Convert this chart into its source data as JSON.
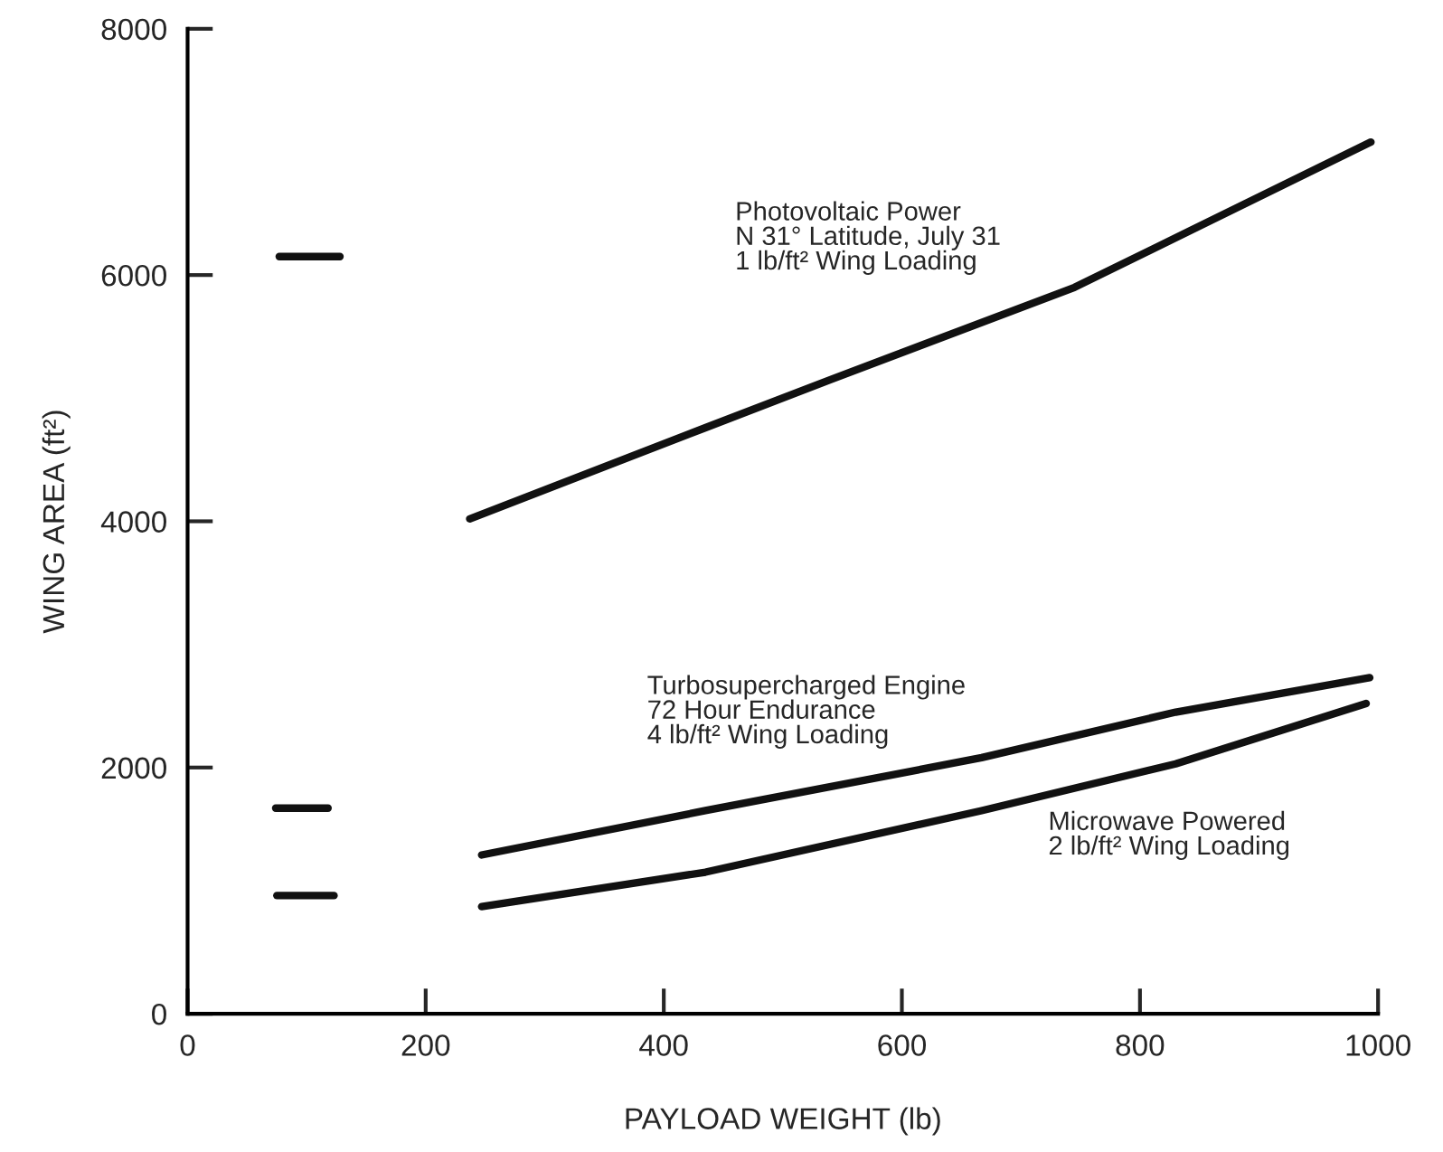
{
  "chart_data": {
    "type": "line",
    "xlabel": "PAYLOAD WEIGHT (lb)",
    "ylabel": "WING AREA (ft²)",
    "xlim": [
      0,
      1000
    ],
    "ylim": [
      0,
      8000
    ],
    "xticks": [
      0,
      200,
      400,
      600,
      800,
      1000
    ],
    "yticks": [
      0,
      2000,
      4000,
      6000,
      8000
    ],
    "grid": false,
    "marker": "none",
    "line_style": "solid",
    "series": [
      {
        "color": "#111111",
        "x": [
          237,
          435,
          540,
          745,
          994
        ],
        "values": [
          4020,
          4760,
          5150,
          5900,
          7080
        ]
      },
      {
        "color": "#111111",
        "x": [
          247,
          435,
          667,
          830,
          993
        ],
        "values": [
          1290,
          1650,
          2080,
          2450,
          2730
        ]
      },
      {
        "color": "#111111",
        "x": [
          247,
          435,
          667,
          830,
          990
        ],
        "values": [
          870,
          1150,
          1650,
          2030,
          2520
        ]
      },
      {
        "color": "#111111",
        "x": [
          77,
          128
        ],
        "values": [
          6150,
          6150
        ]
      },
      {
        "color": "#111111",
        "x": [
          74,
          118
        ],
        "values": [
          1670,
          1670
        ]
      },
      {
        "color": "#111111",
        "x": [
          75,
          123
        ],
        "values": [
          960,
          960
        ]
      }
    ],
    "annotations": [
      "Photovoltaic Power\nN 31° Latitude, July 31\n1 lb/ft² Wing Loading",
      "Turbosupercharged Engine\n72 Hour Endurance\n4 lb/ft² Wing Loading",
      "Microwave Powered\n2 lb/ft² Wing Loading"
    ]
  }
}
